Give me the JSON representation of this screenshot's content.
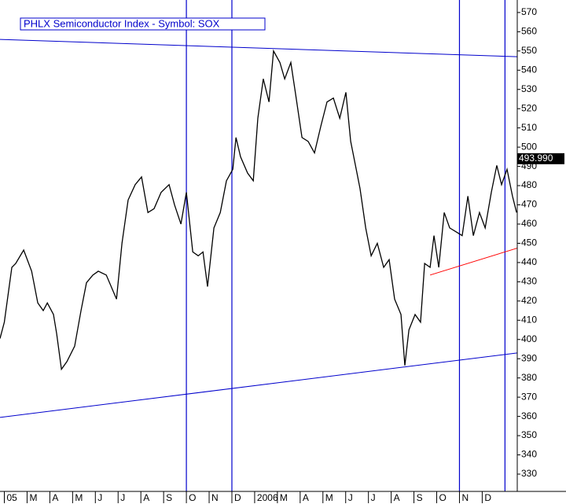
{
  "chart_data": {
    "type": "line",
    "title": "PHLX Semiconductor Index - Symbol: SOX",
    "color": "#000000",
    "x": [
      -0.19,
      0,
      0.33,
      0.5,
      0.85,
      1.2,
      1.47,
      1.71,
      1.89,
      2.16,
      2.3,
      2.51,
      2.75,
      3.09,
      3.37,
      3.61,
      3.89,
      4.13,
      4.48,
      4.93,
      5.17,
      5.44,
      5.75,
      6.03,
      6.31,
      6.58,
      6.89,
      7.24,
      7.48,
      7.76,
      8,
      8.28,
      8.52,
      8.73,
      8.93,
      9.21,
      9.49,
      9.76,
      10.04,
      10.18,
      10.38,
      10.69,
      10.94,
      11.14,
      11.38,
      11.63,
      11.83,
      12.11,
      12.32,
      12.59,
      12.8,
      13.08,
      13.35,
      13.63,
      13.91,
      14.18,
      14.46,
      14.74,
      15.01,
      15.22,
      15.43,
      15.63,
      15.88,
      16.12,
      16.39,
      16.67,
      16.91,
      17.15,
      17.43,
      17.6,
      17.78,
      18.05,
      18.29,
      18.47,
      18.71,
      18.88,
      19.09,
      19.33,
      19.57,
      19.85,
      20.12,
      20.37,
      20.61,
      20.88,
      21.13,
      21.4,
      21.64,
      21.85,
      22.09,
      22.33,
      22.51
    ],
    "values": [
      400.5,
      409,
      437.5,
      439.5,
      446.5,
      435.5,
      419,
      415,
      419,
      413,
      403,
      384.5,
      388.5,
      396.5,
      415,
      429.5,
      433.5,
      435.5,
      433.5,
      421,
      450,
      472.5,
      480.5,
      484.5,
      466,
      468,
      476.5,
      480.5,
      470,
      460,
      476.5,
      445.5,
      443.5,
      445.5,
      427.5,
      458,
      466,
      482.5,
      488.5,
      505,
      495,
      486.5,
      482.5,
      515,
      535.5,
      523.5,
      550,
      544,
      535.5,
      544,
      527.5,
      505,
      503,
      497,
      511,
      523.5,
      525.5,
      515,
      528.5,
      503,
      490.5,
      478.5,
      458,
      443.5,
      450,
      437.5,
      441.5,
      421,
      413,
      386.5,
      405,
      413,
      409,
      439.5,
      437.5,
      454,
      437.5,
      466,
      458,
      456,
      454,
      474.5,
      454,
      466,
      458,
      476.5,
      490.5,
      480.5,
      488.5,
      474.5,
      466
    ],
    "xlim": [
      -0.19,
      22.54
    ],
    "xticks": [
      {
        "value": 0,
        "label": "05"
      },
      {
        "value": 1,
        "label": "M"
      },
      {
        "value": 2,
        "label": "A"
      },
      {
        "value": 3,
        "label": "M"
      },
      {
        "value": 4,
        "label": "J"
      },
      {
        "value": 5,
        "label": "J"
      },
      {
        "value": 6,
        "label": "A"
      },
      {
        "value": 7,
        "label": "S"
      },
      {
        "value": 8,
        "label": "O"
      },
      {
        "value": 9,
        "label": "N"
      },
      {
        "value": 10,
        "label": "D"
      },
      {
        "value": 11,
        "label": "2006"
      },
      {
        "value": 12,
        "label": "M"
      },
      {
        "value": 13,
        "label": "A"
      },
      {
        "value": 14,
        "label": "M"
      },
      {
        "value": 15,
        "label": "J"
      },
      {
        "value": 16,
        "label": "J"
      },
      {
        "value": 17,
        "label": "A"
      },
      {
        "value": 18,
        "label": "S"
      },
      {
        "value": 19,
        "label": "O"
      },
      {
        "value": 20,
        "label": "N"
      },
      {
        "value": 21,
        "label": "D"
      }
    ],
    "ylim": [
      321,
      576.5
    ],
    "yticks": [
      330,
      340,
      350,
      360,
      370,
      380,
      390,
      400,
      410,
      420,
      430,
      440,
      450,
      460,
      470,
      480,
      490,
      500,
      510,
      520,
      530,
      540,
      550,
      560,
      570
    ],
    "price_marker": {
      "value": 493.99,
      "label": "493.990"
    },
    "vertical_lines": {
      "color": "#0000cc",
      "x": [
        8,
        10,
        20,
        22
      ]
    },
    "trendlines": [
      {
        "color": "#0000cc",
        "x": [
          -0.19,
          22.54
        ],
        "y": [
          556,
          547
        ]
      },
      {
        "color": "#0000cc",
        "x": [
          -0.19,
          22.54
        ],
        "y": [
          359.5,
          393
        ]
      },
      {
        "color": "#ff0000",
        "x": [
          18.71,
          22.54
        ],
        "y": [
          433.5,
          447.5
        ]
      }
    ]
  }
}
